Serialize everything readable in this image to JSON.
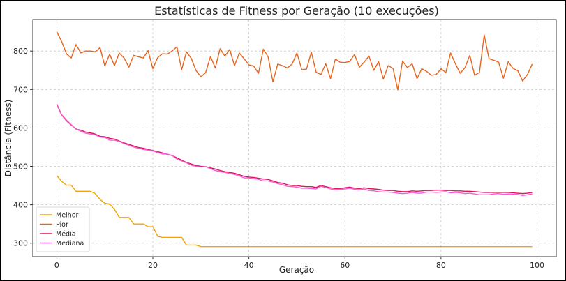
{
  "chart_data": {
    "type": "line",
    "title": "Estatísticas de Fitness por Geração (10 execuções)",
    "xlabel": "Geração",
    "ylabel": "Distância (Fitness)",
    "xlim": [
      -5,
      104
    ],
    "ylim": [
      265,
      882
    ],
    "xticks": [
      0,
      20,
      40,
      60,
      80,
      100
    ],
    "yticks": [
      300,
      400,
      500,
      600,
      700,
      800
    ],
    "grid": true,
    "legend": "bottom-left",
    "x_start": 0,
    "series": [
      {
        "name": "Melhor",
        "color": "#f5a300",
        "values": [
          476,
          461,
          451,
          451,
          435,
          435,
          435,
          435,
          429,
          414,
          404,
          402,
          388,
          367,
          367,
          367,
          350,
          350,
          350,
          343,
          343,
          318,
          315,
          315,
          315,
          315,
          315,
          295,
          295,
          295,
          291,
          291,
          291,
          291,
          291,
          291,
          291,
          291,
          291,
          291,
          291,
          291,
          291,
          291,
          291,
          291,
          291,
          291,
          291,
          291,
          291,
          291,
          291,
          291,
          291,
          291,
          291,
          291,
          291,
          291,
          291,
          291,
          291,
          291,
          291,
          291,
          291,
          291,
          291,
          291,
          291,
          291,
          291,
          291,
          291,
          291,
          291,
          291,
          291,
          291,
          291,
          291,
          291,
          291,
          291,
          291,
          291,
          291,
          291,
          291,
          291,
          291,
          291,
          291,
          291,
          291,
          291,
          291,
          291,
          291
        ]
      },
      {
        "name": "Pior",
        "color": "#e8641d",
        "values": [
          850,
          825,
          793,
          782,
          817,
          795,
          800,
          800,
          798,
          809,
          761,
          792,
          762,
          795,
          782,
          758,
          789,
          785,
          782,
          801,
          754,
          783,
          793,
          792,
          800,
          811,
          752,
          798,
          781,
          749,
          733,
          744,
          786,
          756,
          806,
          787,
          804,
          762,
          795,
          780,
          764,
          761,
          742,
          805,
          785,
          720,
          766,
          762,
          756,
          766,
          795,
          752,
          753,
          797,
          745,
          739,
          767,
          728,
          779,
          771,
          770,
          773,
          791,
          758,
          771,
          787,
          750,
          772,
          727,
          762,
          755,
          699,
          774,
          757,
          767,
          728,
          754,
          747,
          737,
          739,
          754,
          744,
          795,
          767,
          742,
          757,
          789,
          737,
          744,
          842,
          780,
          776,
          771,
          729,
          772,
          755,
          749,
          722,
          739,
          766
        ]
      },
      {
        "name": "Média",
        "color": "#e0145c",
        "values": [
          662,
          634,
          620,
          608,
          597,
          594,
          589,
          587,
          584,
          578,
          577,
          573,
          571,
          566,
          561,
          557,
          553,
          549,
          547,
          544,
          541,
          538,
          535,
          531,
          528,
          522,
          516,
          510,
          506,
          502,
          500,
          499,
          496,
          493,
          489,
          486,
          484,
          482,
          478,
          474,
          472,
          471,
          469,
          467,
          466,
          462,
          458,
          456,
          452,
          450,
          450,
          448,
          447,
          447,
          445,
          450,
          447,
          444,
          442,
          442,
          444,
          446,
          443,
          442,
          444,
          442,
          441,
          440,
          438,
          437,
          437,
          435,
          434,
          434,
          436,
          435,
          436,
          437,
          437,
          438,
          438,
          437,
          437,
          436,
          436,
          435,
          435,
          434,
          433,
          432,
          432,
          432,
          432,
          432,
          432,
          431,
          430,
          429,
          430,
          432
        ]
      },
      {
        "name": "Mediana",
        "color": "#f060d6",
        "values": [
          660,
          633,
          618,
          607,
          598,
          591,
          586,
          584,
          582,
          576,
          575,
          568,
          568,
          565,
          559,
          555,
          550,
          547,
          544,
          542,
          540,
          536,
          532,
          532,
          528,
          519,
          514,
          509,
          503,
          500,
          498,
          499,
          494,
          489,
          486,
          484,
          481,
          479,
          475,
          470,
          470,
          468,
          466,
          462,
          462,
          459,
          455,
          452,
          448,
          447,
          446,
          443,
          443,
          442,
          441,
          448,
          445,
          441,
          439,
          440,
          441,
          443,
          440,
          439,
          441,
          437,
          436,
          434,
          433,
          433,
          432,
          430,
          429,
          430,
          432,
          430,
          430,
          433,
          433,
          432,
          433,
          434,
          431,
          432,
          431,
          429,
          430,
          428,
          426,
          426,
          426,
          428,
          429,
          427,
          428,
          427,
          427,
          424,
          426,
          428
        ]
      }
    ]
  }
}
